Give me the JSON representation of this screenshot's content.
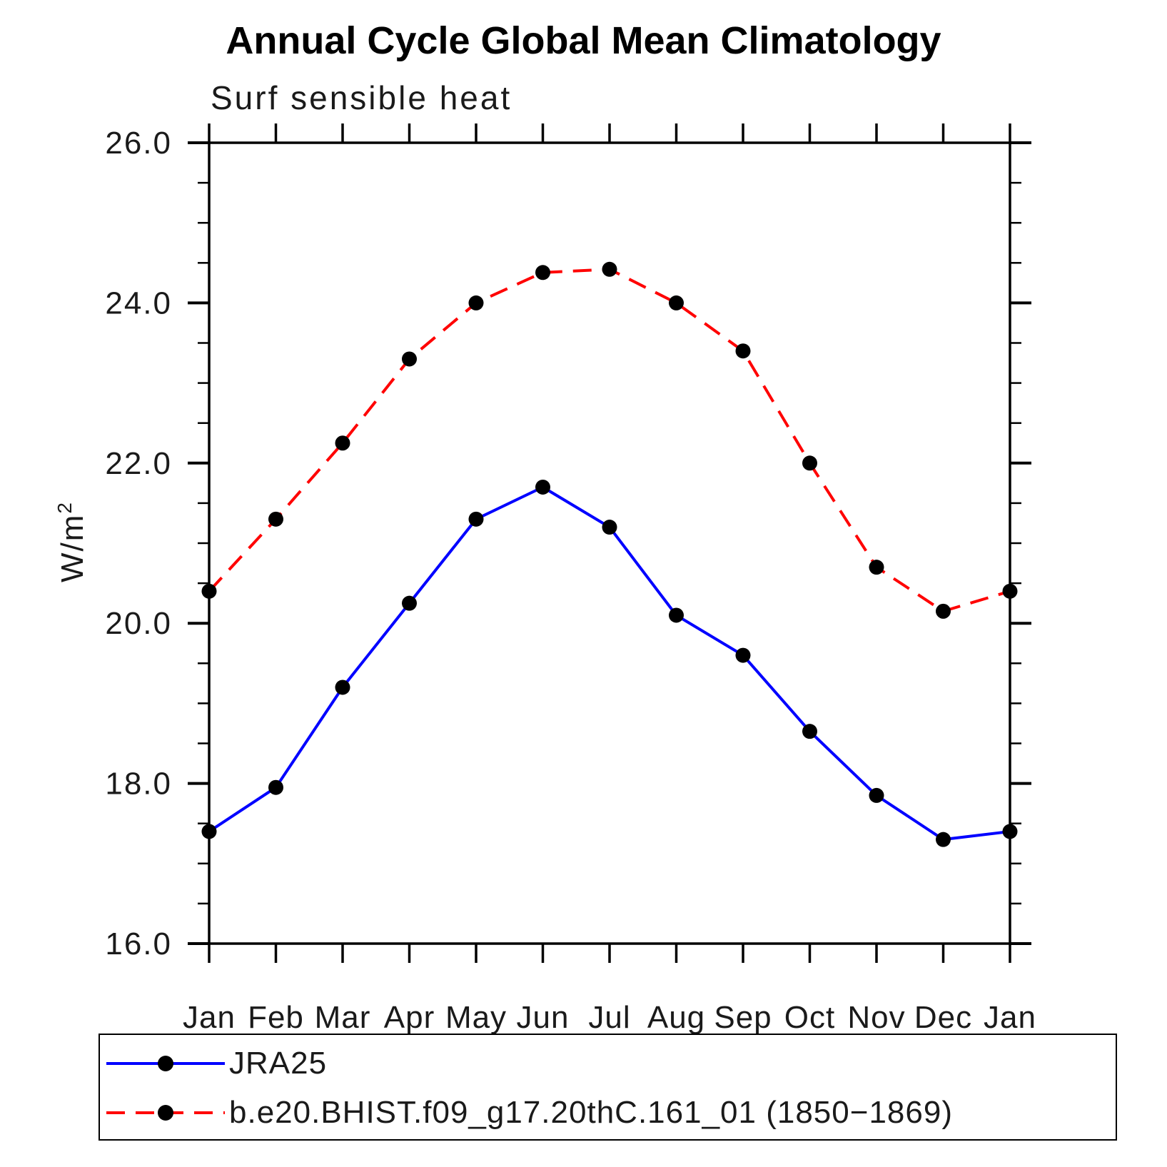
{
  "header": {
    "title": "Annual Cycle Global Mean Climatology",
    "subtitle": "Surf sensible heat"
  },
  "chart_data": {
    "type": "line",
    "title": "Annual Cycle Global Mean Climatology",
    "subtitle": "Surf sensible heat",
    "ylabel": "W/m²",
    "ylabel_parts": {
      "base": "W/m",
      "sup": "2"
    },
    "categories": [
      "Jan",
      "Feb",
      "Mar",
      "Apr",
      "May",
      "Jun",
      "Jul",
      "Aug",
      "Sep",
      "Oct",
      "Nov",
      "Dec",
      "Jan"
    ],
    "series": [
      {
        "name": "JRA25",
        "color": "#0000ff",
        "line_style": "solid",
        "marker": "circle",
        "marker_color": "#000000",
        "values": [
          17.4,
          17.95,
          19.2,
          20.25,
          21.3,
          21.7,
          21.2,
          20.1,
          19.6,
          18.65,
          17.85,
          17.3,
          17.4
        ]
      },
      {
        "name": "b.e20.BHIST.f09_g17.20thC.161_01 (1850−1869)",
        "color": "#ff0000",
        "line_style": "dashed",
        "marker": "circle",
        "marker_color": "#000000",
        "values": [
          20.4,
          21.3,
          22.25,
          23.3,
          24.0,
          24.38,
          24.42,
          24.0,
          23.4,
          22.0,
          20.7,
          20.15,
          20.4
        ]
      }
    ],
    "ylim": [
      16.0,
      26.0
    ],
    "yticks": [
      16,
      18,
      20,
      22,
      24,
      26
    ],
    "ytick_labels": [
      "16.0",
      "18.0",
      "20.0",
      "22.0",
      "24.0",
      "26.0"
    ],
    "ytick_minor_step": 0.5,
    "grid": false,
    "frame_color": "#000000",
    "legend_position": "bottom-left-box"
  },
  "legend": {
    "items": [
      {
        "label": "JRA25",
        "line_color": "#0000ff",
        "line_style": "solid",
        "marker": "black-dot"
      },
      {
        "label": "b.e20.BHIST.f09_g17.20thC.161_01 (1850−1869)",
        "line_color": "#ff0000",
        "line_style": "dashed",
        "marker": "black-dot"
      }
    ]
  }
}
